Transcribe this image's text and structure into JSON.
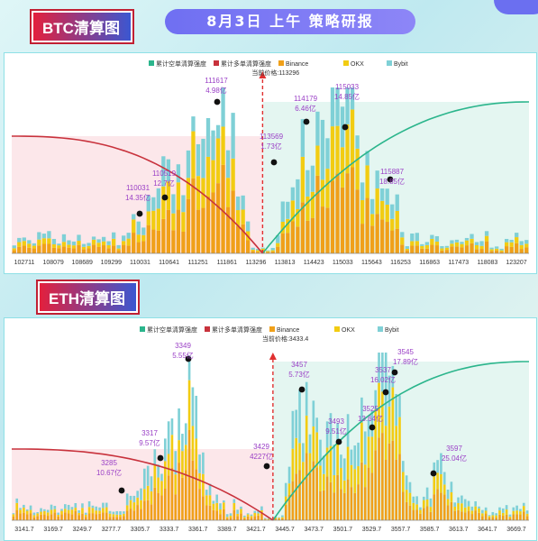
{
  "header": {
    "title": "8月3日 上午 策略研报"
  },
  "btc": {
    "tag": "BTC清算图"
  },
  "eth": {
    "tag": "ETH清算图"
  },
  "colors": {
    "short_cum": "#2bb58c",
    "long_cum": "#c8323c",
    "binance": "#f0a019",
    "okx": "#f2cc12",
    "bybit": "#7fd0d6",
    "annotation": "#9a3fc6",
    "marker": "#e03030"
  },
  "chart_data": [
    {
      "type": "bar",
      "legend": [
        "累计空单清算强度",
        "累计多单清算强度",
        "Binance",
        "OKX",
        "Bybit"
      ],
      "price_label": "当前价格:113296",
      "current_price": 113296,
      "x_ticks": [
        "102711",
        "108079",
        "108689",
        "109299",
        "110031",
        "110641",
        "111251",
        "111861",
        "113296",
        "113813",
        "114423",
        "115033",
        "115643",
        "116253",
        "116863",
        "117473",
        "118083",
        "123207"
      ],
      "annotations": [
        {
          "price": "110031",
          "value": "14.35亿"
        },
        {
          "price": "110519",
          "value": "12.7亿"
        },
        {
          "price": "111617",
          "value": "4.98亿"
        },
        {
          "price": "113569",
          "value": "1.73亿"
        },
        {
          "price": "114179",
          "value": "6.46亿"
        },
        {
          "price": "115033",
          "value": "14.85亿"
        },
        {
          "price": "115887",
          "value": "18.85亿"
        }
      ]
    },
    {
      "type": "bar",
      "legend": [
        "累计空单清算强度",
        "累计多单清算强度",
        "Binance",
        "OKX",
        "Bybit"
      ],
      "price_label": "当前价格:3433.4",
      "current_price": 3433.4,
      "x_ticks": [
        "3141.7",
        "3169.7",
        "3249.7",
        "3277.7",
        "3305.7",
        "3333.7",
        "3361.7",
        "3389.7",
        "3421.7",
        "3445.7",
        "3473.7",
        "3501.7",
        "3529.7",
        "3557.7",
        "3585.7",
        "3613.7",
        "3641.7",
        "3669.7"
      ],
      "annotations": [
        {
          "price": "3285",
          "value": "10.67亿"
        },
        {
          "price": "3317",
          "value": "9.57亿"
        },
        {
          "price": "3349",
          "value": "5.55亿"
        },
        {
          "price": "3429",
          "value": "4227亿"
        },
        {
          "price": "3457",
          "value": "5.73亿"
        },
        {
          "price": "3493",
          "value": "9.51亿"
        },
        {
          "price": "3525",
          "value": "13.64亿"
        },
        {
          "price": "3537",
          "value": "16.02亿"
        },
        {
          "price": "3545",
          "value": "17.89亿"
        },
        {
          "price": "3597",
          "value": "25.04亿"
        }
      ]
    }
  ]
}
